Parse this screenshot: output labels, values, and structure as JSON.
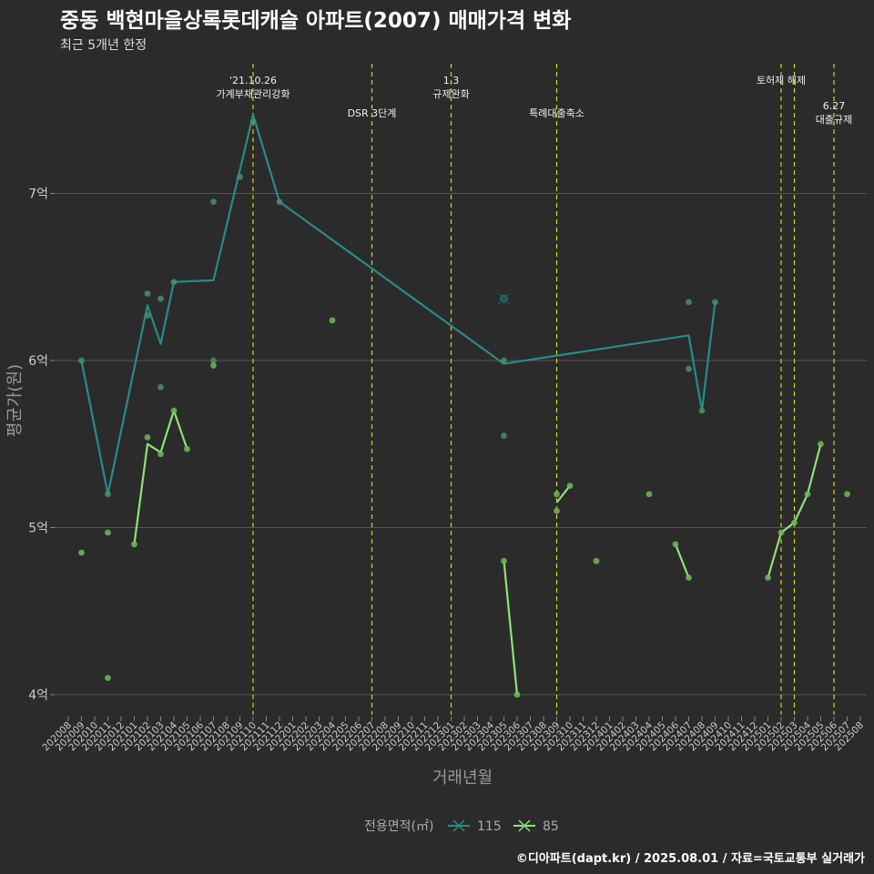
{
  "header": {
    "title": "중동 백현마을상록롯데캐슬 아파트(2007) 매매가격 변화",
    "subtitle": "최근 5개년 한정"
  },
  "footer": {
    "credit": "©디아파트(dapt.kr) / 2025.08.01 / 자료=국토교통부 실거래가"
  },
  "colors": {
    "background": "#2b2b2b",
    "grid": "#555555",
    "axis_text": "#cccccc",
    "event_line": "#d4d42a",
    "series_115": "#2a8b86",
    "series_85": "#8fe07a",
    "point_115": "#4a8f6a",
    "point_85": "#6db85a"
  },
  "chart_data": {
    "type": "line",
    "xlabel": "거래년월",
    "ylabel": "평균가(원)",
    "ylim": [
      3.88,
      7.82
    ],
    "y_ticks": [
      {
        "value": 4,
        "label": "4억"
      },
      {
        "value": 5,
        "label": "5억"
      },
      {
        "value": 6,
        "label": "6억"
      },
      {
        "value": 7,
        "label": "7억"
      }
    ],
    "x_categories": [
      "202008",
      "202009",
      "202010",
      "202011",
      "202012",
      "202101",
      "202102",
      "202103",
      "202104",
      "202105",
      "202106",
      "202107",
      "202108",
      "202109",
      "202110",
      "202111",
      "202112",
      "202201",
      "202202",
      "202203",
      "202204",
      "202205",
      "202206",
      "202207",
      "202208",
      "202209",
      "202210",
      "202211",
      "202212",
      "202301",
      "202302",
      "202303",
      "202304",
      "202305",
      "202306",
      "202307",
      "202308",
      "202309",
      "202310",
      "202311",
      "202312",
      "202401",
      "202402",
      "202403",
      "202404",
      "202405",
      "202406",
      "202407",
      "202408",
      "202409",
      "202410",
      "202411",
      "202412",
      "202501",
      "202502",
      "202503",
      "202504",
      "202505",
      "202506",
      "202507",
      "202508"
    ],
    "legend": {
      "title": "전용면적(㎡)",
      "placement": "bottom"
    },
    "events": [
      {
        "x": "202110",
        "lines": [
          "'21.10.26",
          "가계부채관리강화"
        ],
        "level": 0
      },
      {
        "x": "202207",
        "lines": [
          "DSR 3단계"
        ],
        "level": 1
      },
      {
        "x": "202301",
        "lines": [
          "1.3",
          "규제완화"
        ],
        "level": 0
      },
      {
        "x": "202309",
        "lines": [
          "특례대출축소"
        ],
        "level": 1
      },
      {
        "x": "202502",
        "lines": [
          "토허제 해제"
        ],
        "level": 0
      },
      {
        "x": "202503",
        "lines": [],
        "level": 0
      },
      {
        "x": "202506",
        "lines": [
          "6.27",
          "대출규제"
        ],
        "level": 2
      }
    ],
    "series": [
      {
        "name": "115",
        "line": [
          [
            "202009",
            6.0
          ],
          [
            "202011",
            5.2
          ],
          [
            "202102",
            6.33
          ],
          [
            "202103",
            6.1
          ],
          [
            "202104",
            6.47
          ],
          [
            "202107",
            6.48
          ],
          [
            "202110",
            7.47
          ],
          [
            "202112",
            6.95
          ],
          [
            "202305",
            5.98
          ],
          [
            "202407",
            6.15
          ],
          [
            "202408",
            5.7
          ],
          [
            "202409",
            6.35
          ]
        ],
        "points": [
          [
            "202009",
            6.0
          ],
          [
            "202011",
            5.2
          ],
          [
            "202102",
            6.4
          ],
          [
            "202102",
            6.27
          ],
          [
            "202103",
            6.37
          ],
          [
            "202103",
            5.84
          ],
          [
            "202104",
            6.47
          ],
          [
            "202107",
            6.95
          ],
          [
            "202107",
            6.0
          ],
          [
            "202109",
            7.1
          ],
          [
            "202110",
            7.43
          ],
          [
            "202112",
            6.95
          ],
          [
            "202305",
            6.0
          ],
          [
            "202305",
            5.55
          ],
          [
            "202407",
            6.35
          ],
          [
            "202407",
            5.95
          ],
          [
            "202408",
            5.7
          ],
          [
            "202409",
            6.35
          ]
        ],
        "cancelled": [
          [
            "202305",
            6.37
          ]
        ]
      },
      {
        "name": "85",
        "line_segments": [
          [
            [
              "202101",
              4.9
            ],
            [
              "202102",
              5.5
            ],
            [
              "202103",
              5.45
            ],
            [
              "202104",
              5.7
            ],
            [
              "202105",
              5.47
            ]
          ],
          [
            [
              "202305",
              4.8
            ],
            [
              "202306",
              4.0
            ]
          ],
          [
            [
              "202309",
              5.15
            ],
            [
              "202310",
              5.25
            ]
          ],
          [
            [
              "202406",
              4.9
            ],
            [
              "202407",
              4.7
            ]
          ],
          [
            [
              "202501",
              4.7
            ],
            [
              "202502",
              4.97
            ],
            [
              "202503",
              5.03
            ],
            [
              "202504",
              5.2
            ],
            [
              "202505",
              5.5
            ]
          ]
        ],
        "points": [
          [
            "202009",
            4.85
          ],
          [
            "202011",
            4.97
          ],
          [
            "202011",
            4.1
          ],
          [
            "202101",
            4.9
          ],
          [
            "202102",
            5.54
          ],
          [
            "202103",
            5.44
          ],
          [
            "202104",
            5.7
          ],
          [
            "202105",
            5.47
          ],
          [
            "202107",
            5.97
          ],
          [
            "202204",
            6.24
          ],
          [
            "202305",
            4.8
          ],
          [
            "202306",
            4.0
          ],
          [
            "202309",
            5.2
          ],
          [
            "202309",
            5.1
          ],
          [
            "202310",
            5.25
          ],
          [
            "202312",
            4.8
          ],
          [
            "202404",
            5.2
          ],
          [
            "202406",
            4.9
          ],
          [
            "202407",
            4.7
          ],
          [
            "202501",
            4.7
          ],
          [
            "202502",
            4.97
          ],
          [
            "202503",
            5.03
          ],
          [
            "202504",
            5.2
          ],
          [
            "202505",
            5.5
          ],
          [
            "202507",
            5.2
          ]
        ]
      }
    ]
  }
}
